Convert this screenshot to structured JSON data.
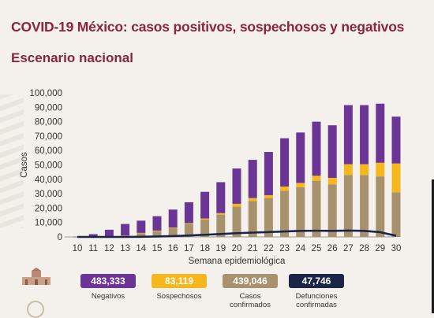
{
  "title": "COVID-19 México: casos positivos, sospechosos y negativos",
  "subtitle": "Escenario nacional",
  "colors": {
    "negativos": "#6a3594",
    "sospechosos": "#f6b71d",
    "confirmados": "#a8916d",
    "defunciones": "#1c2447",
    "title": "#8a2442"
  },
  "chart_data": {
    "type": "bar",
    "stacked": true,
    "title": "",
    "xlabel": "Semana epidemiológica",
    "ylabel": "Casos",
    "ylim": [
      0,
      100000
    ],
    "yticks": [
      0,
      10000,
      20000,
      30000,
      40000,
      50000,
      60000,
      70000,
      80000,
      90000,
      100000
    ],
    "ytick_labels": [
      "0",
      "10,000",
      "20,000",
      "30,000",
      "40,000",
      "50,000",
      "60,000",
      "70,000",
      "80,000",
      "90,000",
      "100,000"
    ],
    "categories": [
      "10",
      "11",
      "12",
      "13",
      "14",
      "15",
      "16",
      "17",
      "18",
      "19",
      "20",
      "21",
      "22",
      "23",
      "24",
      "25",
      "26",
      "27",
      "28",
      "29",
      "30"
    ],
    "series": [
      {
        "name": "Casos confirmados",
        "values": [
          10,
          100,
          300,
          800,
          2500,
          4000,
          6000,
          9000,
          12000,
          15500,
          21000,
          25000,
          27000,
          32000,
          34500,
          39000,
          36500,
          43000,
          43000,
          42000,
          31000
        ]
      },
      {
        "name": "Sospechosos",
        "values": [
          0,
          50,
          200,
          200,
          300,
          400,
          500,
          600,
          800,
          1000,
          2000,
          2000,
          2000,
          3000,
          3000,
          3500,
          4500,
          7500,
          7500,
          9500,
          20000
        ]
      },
      {
        "name": "Negativos",
        "values": [
          100,
          1750,
          4500,
          8000,
          8500,
          10000,
          12500,
          14500,
          18500,
          21500,
          24500,
          26500,
          30000,
          33500,
          35000,
          37500,
          36500,
          41000,
          41000,
          41000,
          32500
        ]
      }
    ],
    "line_series": {
      "name": "Defunciones confirmadas",
      "values": [
        0,
        0,
        0,
        0,
        100,
        300,
        600,
        1000,
        1500,
        2000,
        2600,
        3000,
        3400,
        3800,
        4200,
        4300,
        4200,
        4400,
        4200,
        3300,
        800
      ]
    }
  },
  "legend": [
    {
      "value": "483,333",
      "label": "Negativos",
      "color": "#6a3594"
    },
    {
      "value": "83,119",
      "label": "Sospechosos",
      "color": "#f6b71d"
    },
    {
      "value": "439,046",
      "label": "Casos confirmados",
      "color": "#a8916d"
    },
    {
      "value": "47,746",
      "label": "Defunciones confirmadas",
      "color": "#1c2447"
    }
  ]
}
